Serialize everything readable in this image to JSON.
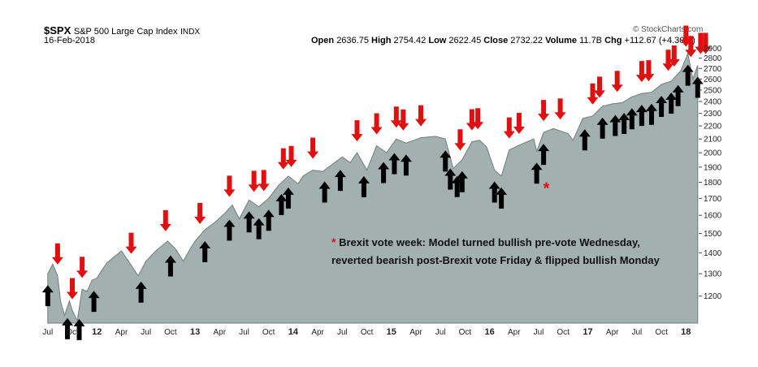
{
  "header": {
    "symbol": "$SPX",
    "name": "S&P 500 Large Cap Index",
    "exchange": "INDX",
    "date": "16-Feb-2018",
    "logo": "© StockCharts.com",
    "ohlc": {
      "open_label": "Open",
      "open": "2636.75",
      "high_label": "High",
      "high": "2754.42",
      "low_label": "Low",
      "low": "2622.45",
      "close_label": "Close",
      "close": "2732.22",
      "volume_label": "Volume",
      "volume": "11.7B",
      "chg_label": "Chg",
      "chg": "+112.67 (+4.30%)"
    }
  },
  "annotation": {
    "star": "*",
    "line1": "Brexit vote week: Model turned bullish pre-vote Wednesday,",
    "line2": "reverted bearish post-Brexit vote Friday & flipped bullish Monday"
  },
  "colors": {
    "area_fill": "#a3b0b0",
    "area_line": "#6f7d7d",
    "sell_arrow": "#e01010",
    "buy_arrow": "#000000",
    "star": "#e01010"
  },
  "chart_data": {
    "type": "area",
    "series": [
      {
        "values": [
          [
            2011.5,
            1300
          ],
          [
            2011.55,
            1345
          ],
          [
            2011.6,
            1290
          ],
          [
            2011.63,
            1180
          ],
          [
            2011.67,
            1120
          ],
          [
            2011.72,
            1180
          ],
          [
            2011.75,
            1140
          ],
          [
            2011.8,
            1100
          ],
          [
            2011.85,
            1230
          ],
          [
            2011.9,
            1220
          ],
          [
            2011.95,
            1270
          ],
          [
            2012.0,
            1280
          ],
          [
            2012.1,
            1350
          ],
          [
            2012.25,
            1410
          ],
          [
            2012.35,
            1340
          ],
          [
            2012.42,
            1290
          ],
          [
            2012.5,
            1360
          ],
          [
            2012.6,
            1410
          ],
          [
            2012.72,
            1460
          ],
          [
            2012.8,
            1420
          ],
          [
            2012.88,
            1360
          ],
          [
            2012.95,
            1420
          ],
          [
            2013.0,
            1460
          ],
          [
            2013.1,
            1520
          ],
          [
            2013.2,
            1560
          ],
          [
            2013.3,
            1610
          ],
          [
            2013.38,
            1660
          ],
          [
            2013.45,
            1580
          ],
          [
            2013.55,
            1690
          ],
          [
            2013.65,
            1650
          ],
          [
            2013.75,
            1700
          ],
          [
            2013.85,
            1780
          ],
          [
            2013.95,
            1840
          ],
          [
            2014.05,
            1790
          ],
          [
            2014.1,
            1840
          ],
          [
            2014.2,
            1880
          ],
          [
            2014.3,
            1870
          ],
          [
            2014.4,
            1920
          ],
          [
            2014.5,
            1970
          ],
          [
            2014.58,
            1930
          ],
          [
            2014.65,
            2000
          ],
          [
            2014.75,
            1880
          ],
          [
            2014.85,
            2050
          ],
          [
            2014.95,
            2000
          ],
          [
            2015.05,
            2100
          ],
          [
            2015.15,
            2070
          ],
          [
            2015.3,
            2110
          ],
          [
            2015.45,
            2120
          ],
          [
            2015.55,
            2100
          ],
          [
            2015.63,
            1890
          ],
          [
            2015.72,
            1950
          ],
          [
            2015.82,
            2080
          ],
          [
            2015.9,
            2090
          ],
          [
            2015.97,
            2040
          ],
          [
            2016.05,
            1880
          ],
          [
            2016.12,
            1840
          ],
          [
            2016.2,
            2020
          ],
          [
            2016.35,
            2070
          ],
          [
            2016.45,
            2100
          ],
          [
            2016.48,
            2010
          ],
          [
            2016.55,
            2150
          ],
          [
            2016.65,
            2180
          ],
          [
            2016.8,
            2140
          ],
          [
            2016.85,
            2090
          ],
          [
            2016.95,
            2260
          ],
          [
            2017.05,
            2280
          ],
          [
            2017.15,
            2360
          ],
          [
            2017.25,
            2380
          ],
          [
            2017.35,
            2390
          ],
          [
            2017.45,
            2440
          ],
          [
            2017.55,
            2470
          ],
          [
            2017.65,
            2480
          ],
          [
            2017.75,
            2550
          ],
          [
            2017.85,
            2580
          ],
          [
            2017.95,
            2680
          ],
          [
            2018.02,
            2850
          ],
          [
            2018.07,
            2600
          ],
          [
            2018.12,
            2730
          ]
        ]
      }
    ],
    "sell_signals": [
      2011.6,
      2011.75,
      2011.85,
      2012.35,
      2012.7,
      2013.05,
      2013.35,
      2013.6,
      2013.7,
      2013.9,
      2013.98,
      2014.2,
      2014.65,
      2014.85,
      2015.05,
      2015.12,
      2015.3,
      2015.7,
      2015.82,
      2015.88,
      2016.2,
      2016.3,
      2016.55,
      2016.72,
      2017.05,
      2017.12,
      2017.3,
      2017.55,
      2017.62,
      2017.82,
      2017.88,
      2018.0,
      2018.05,
      2018.15,
      2018.2
    ],
    "buy_signals": [
      2011.5,
      2011.7,
      2011.82,
      2011.97,
      2012.45,
      2012.75,
      2013.1,
      2013.35,
      2013.55,
      2013.65,
      2013.75,
      2013.88,
      2013.95,
      2014.32,
      2014.48,
      2014.72,
      2014.92,
      2015.03,
      2015.15,
      2015.55,
      2015.6,
      2015.67,
      2015.72,
      2016.05,
      2016.12,
      2016.48,
      2016.55,
      2016.97,
      2017.15,
      2017.28,
      2017.37,
      2017.45,
      2017.55,
      2017.65,
      2017.75,
      2017.85,
      2017.92,
      2018.02,
      2018.12
    ],
    "brexit_marker_x": 2016.48,
    "x_ticks": [
      "Jul",
      "Oct",
      "12",
      "Apr",
      "Jul",
      "Oct",
      "13",
      "Apr",
      "Jul",
      "Oct",
      "14",
      "Apr",
      "Jul",
      "Oct",
      "15",
      "Apr",
      "Jul",
      "Oct",
      "16",
      "Apr",
      "Jul",
      "Oct",
      "17",
      "Apr",
      "Jul",
      "Oct",
      "18"
    ],
    "y_ticks": [
      1200,
      1300,
      1400,
      1500,
      1600,
      1700,
      1800,
      1900,
      2000,
      2100,
      2200,
      2300,
      2400,
      2500,
      2600,
      2700,
      2800,
      2900
    ],
    "y_scale": "log",
    "ylim": [
      1090,
      2930
    ],
    "xlim": [
      2011.46,
      2018.13
    ],
    "grid": false
  }
}
